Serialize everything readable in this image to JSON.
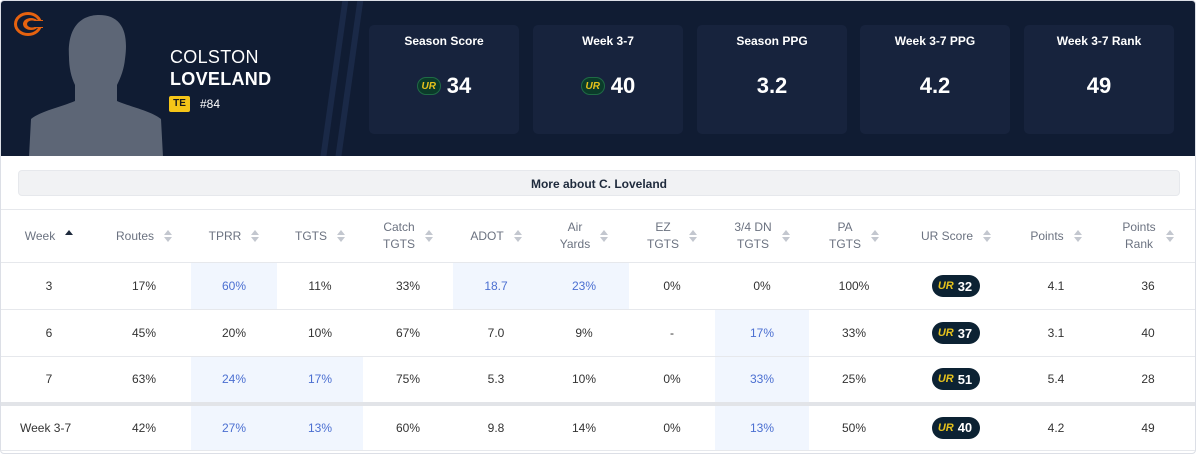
{
  "player": {
    "first_name": "COLSTON",
    "last_name": "LOVELAND",
    "position": "TE",
    "jersey": "#84",
    "team_logo": "bears-c-logo-icon"
  },
  "stat_cards": [
    {
      "label": "Season Score",
      "value": "34",
      "has_ur_icon": true
    },
    {
      "label": "Week 3-7",
      "value": "40",
      "has_ur_icon": true
    },
    {
      "label": "Season PPG",
      "value": "3.2",
      "has_ur_icon": false
    },
    {
      "label": "Week 3-7 PPG",
      "value": "4.2",
      "has_ur_icon": false
    },
    {
      "label": "Week 3-7 Rank",
      "value": "49",
      "has_ur_icon": false
    }
  ],
  "ur_icon_text": "UR",
  "more_about": "More about C. Loveland",
  "table": {
    "columns": [
      {
        "l1": "Week",
        "l2": ""
      },
      {
        "l1": "Routes",
        "l2": ""
      },
      {
        "l1": "TPRR",
        "l2": ""
      },
      {
        "l1": "TGTS",
        "l2": ""
      },
      {
        "l1": "Catch",
        "l2": "TGTS"
      },
      {
        "l1": "ADOT",
        "l2": ""
      },
      {
        "l1": "Air",
        "l2": "Yards"
      },
      {
        "l1": "EZ",
        "l2": "TGTS"
      },
      {
        "l1": "3/4 DN",
        "l2": "TGTS"
      },
      {
        "l1": "PA",
        "l2": "TGTS"
      },
      {
        "l1": "UR Score",
        "l2": ""
      },
      {
        "l1": "Points",
        "l2": ""
      },
      {
        "l1": "Points",
        "l2": "Rank"
      }
    ],
    "rows": [
      {
        "week": "3",
        "routes": "17%",
        "tprr": "60%",
        "tgts": "11%",
        "catch": "33%",
        "adot": "18.7",
        "air": "23%",
        "ez": "0%",
        "dn": "0%",
        "pa": "100%",
        "ur": "32",
        "points": "4.1",
        "rank": "36"
      },
      {
        "week": "6",
        "routes": "45%",
        "tprr": "20%",
        "tgts": "10%",
        "catch": "67%",
        "adot": "7.0",
        "air": "9%",
        "ez": "-",
        "dn": "17%",
        "pa": "33%",
        "ur": "37",
        "points": "3.1",
        "rank": "40"
      },
      {
        "week": "7",
        "routes": "63%",
        "tprr": "24%",
        "tgts": "17%",
        "catch": "75%",
        "adot": "5.3",
        "air": "10%",
        "ez": "0%",
        "dn": "33%",
        "pa": "25%",
        "ur": "51",
        "points": "5.4",
        "rank": "28"
      }
    ],
    "total": {
      "week": "Week 3-7",
      "routes": "42%",
      "tprr": "27%",
      "tgts": "13%",
      "catch": "60%",
      "adot": "9.8",
      "air": "14%",
      "ez": "0%",
      "dn": "13%",
      "pa": "50%",
      "ur": "40",
      "points": "4.2",
      "rank": "49"
    },
    "highlight_color": "#f1f6fe",
    "highlight_text_color": "#4b6fd1"
  }
}
